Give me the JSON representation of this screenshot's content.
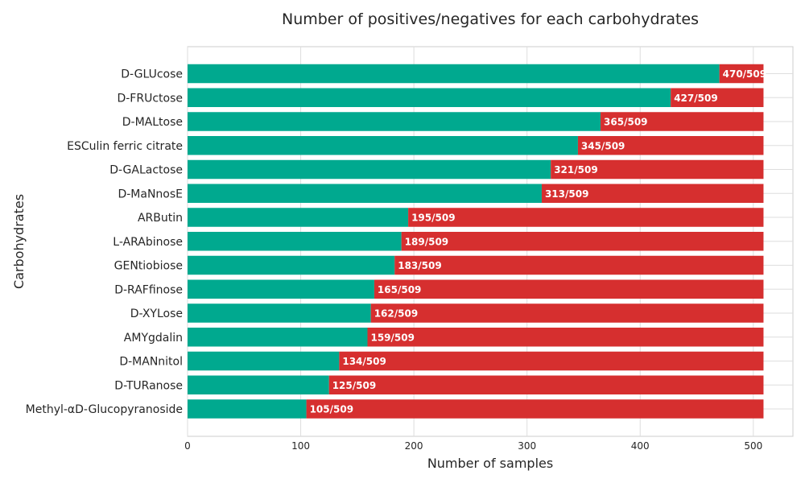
{
  "chart_data": {
    "type": "bar",
    "orientation": "horizontal",
    "stacked": true,
    "title": "Number of positives/negatives for each carbohydrates",
    "xlabel": "Number of samples",
    "ylabel": "Carbohydrates",
    "xlim": [
      0,
      535
    ],
    "xticks": [
      "0",
      "100",
      "200",
      "300",
      "400",
      "500"
    ],
    "grid": true,
    "total": 509,
    "categories": [
      "D-GLUcose",
      "D-FRUctose",
      "D-MALtose",
      "ESCulin ferric citrate",
      "D-GALactose",
      "D-MaNnosE",
      "ARButin",
      "L-ARAbinose",
      "GENtiobiose",
      "D-RAFfinose",
      "D-XYLose",
      "AMYgdalin",
      "D-MANnitol",
      "D-TURanose",
      "Methyl-αD-Glucopyranoside"
    ],
    "series": [
      {
        "values": [
          470,
          427,
          365,
          345,
          321,
          313,
          195,
          189,
          183,
          165,
          162,
          159,
          134,
          125,
          105
        ],
        "color": "#00a98f"
      },
      {
        "values": [
          39,
          82,
          144,
          164,
          188,
          196,
          314,
          320,
          326,
          344,
          347,
          350,
          375,
          384,
          404
        ],
        "color": "#d62f2f"
      }
    ],
    "data_labels": [
      "470/509",
      "427/509",
      "365/509",
      "345/509",
      "321/509",
      "313/509",
      "195/509",
      "189/509",
      "183/509",
      "165/509",
      "162/509",
      "159/509",
      "134/509",
      "125/509",
      "105/509"
    ]
  }
}
